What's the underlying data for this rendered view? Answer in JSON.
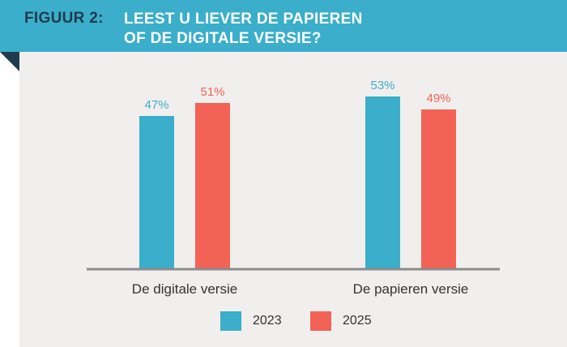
{
  "header": {
    "figure_label": "FIGUUR 2:",
    "title_line1": "LEEST U LIEVER DE PAPIEREN",
    "title_line2": "OF DE DIGITALE VERSIE?"
  },
  "colors": {
    "banner": "#3aaecb",
    "series_2023": "#3aaecb",
    "series_2025": "#f26355",
    "panel": "#f1efed",
    "axis": "#8c8c8c"
  },
  "chart_data": {
    "type": "bar",
    "title": "LEEST U LIEVER DE PAPIEREN OF DE DIGITALE VERSIE?",
    "categories": [
      "De digitale versie",
      "De papieren versie"
    ],
    "series": [
      {
        "name": "2023",
        "values": [
          47,
          53
        ],
        "labels": [
          "47%",
          "53%"
        ],
        "color": "#3aaecb"
      },
      {
        "name": "2025",
        "values": [
          51,
          49
        ],
        "labels": [
          "51%",
          "49%"
        ],
        "color": "#f26355"
      }
    ],
    "unit": "%",
    "ylim": [
      0,
      55
    ],
    "grid": false,
    "legend": "bottom-center"
  }
}
